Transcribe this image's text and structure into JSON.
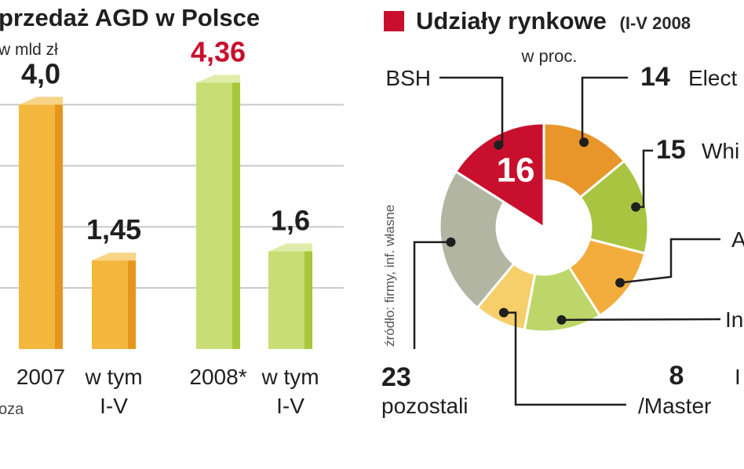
{
  "chart_data": [
    {
      "type": "bar",
      "title": "przedaż AGD w Polsce",
      "unit": "w mld zł",
      "categories": [
        "2007",
        "w tym I-V",
        "2008*",
        "w tym I-V"
      ],
      "category_lines": [
        [
          "2007"
        ],
        [
          "w tym",
          "I-V"
        ],
        [
          "2008*"
        ],
        [
          "w tym",
          "I-V"
        ]
      ],
      "values": [
        4.0,
        1.45,
        4.36,
        1.6
      ],
      "value_labels": [
        "4,0",
        "1,45",
        "4,36",
        "1,6"
      ],
      "highlight_index": 2,
      "ylim": [
        0,
        4.7
      ],
      "grid": true,
      "footnote": "oza",
      "colors": {
        "bar_2007_front": "#f4b73e",
        "bar_2007_side": "#e6961c",
        "bar_2007_top": "#f8d487",
        "bar_2008_front": "#c8dd73",
        "bar_2008_side": "#a8c73a",
        "bar_2008_top": "#e0edaa",
        "highlight_text": "#c8102e",
        "grid": "#c9c9c9"
      }
    },
    {
      "type": "pie",
      "title": "Udziały rynkowe",
      "period": "(I-V 2008",
      "unit": "w proc.",
      "source": "źródło: firmy, inf. własne",
      "slices": [
        {
          "label": "BSH",
          "value": 16,
          "value_label": "16",
          "color": "#c8102e"
        },
        {
          "label": "Elect",
          "value": 14,
          "value_label": "14",
          "color": "#e8962a"
        },
        {
          "label": "Whi",
          "value": 15,
          "value_label": "15",
          "color": "#a9c440"
        },
        {
          "label": "A",
          "value": 12,
          "value_label": "",
          "color": "#f3ad3d"
        },
        {
          "label": "In",
          "value": 12,
          "value_label": "",
          "color": "#bcd66a"
        },
        {
          "label": "/Master",
          "value": 8,
          "value_label": "8",
          "color": "#f6cf6a"
        },
        {
          "label": "pozostali",
          "value": 23,
          "value_label": "23",
          "color": "#b3b5a3"
        }
      ],
      "highlight_index": 0,
      "truncated_label": "I"
    }
  ]
}
